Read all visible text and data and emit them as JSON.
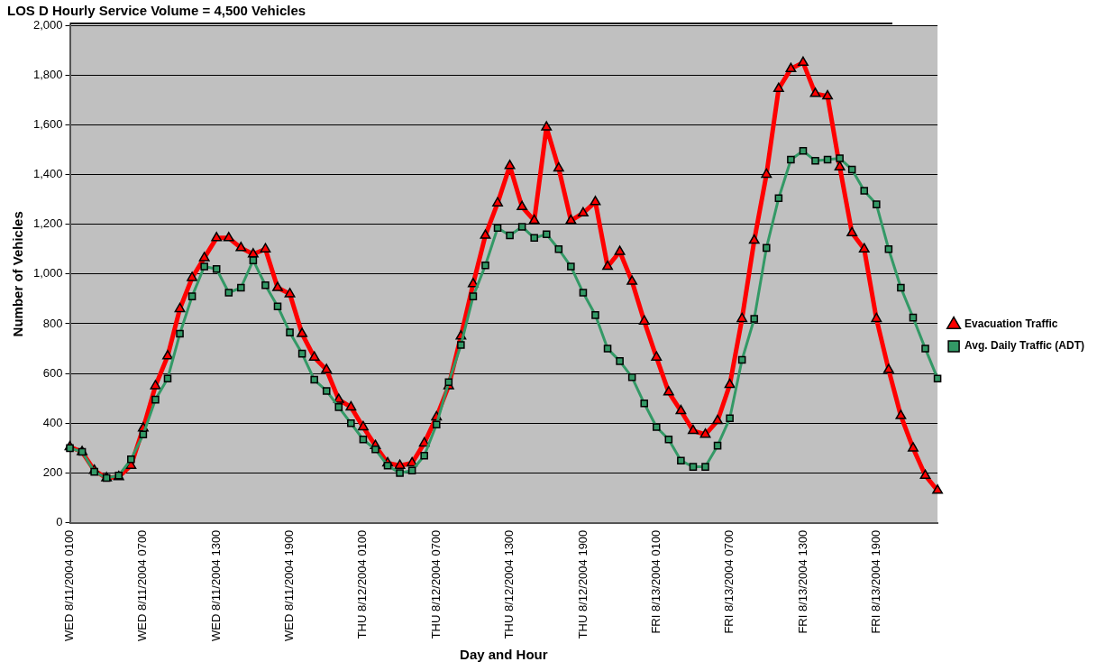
{
  "chart_data": {
    "type": "line",
    "title": "LOS D Hourly Service Volume = 4,500 Vehicles",
    "xlabel": "Day and Hour",
    "ylabel": "Number of Vehicles",
    "categories": [
      "WED 8/11/2004 0100",
      null,
      null,
      null,
      null,
      null,
      "WED 8/11/2004 0700",
      null,
      null,
      null,
      null,
      null,
      "WED 8/11/2004 1300",
      null,
      null,
      null,
      null,
      null,
      "WED 8/11/2004 1900",
      null,
      null,
      null,
      null,
      null,
      "THU 8/12/2004 0100",
      null,
      null,
      null,
      null,
      null,
      "THU 8/12/2004 0700",
      null,
      null,
      null,
      null,
      null,
      "THU 8/12/2004 1300",
      null,
      null,
      null,
      null,
      null,
      "THU 8/12/2004 1900",
      null,
      null,
      null,
      null,
      null,
      "FRI 8/13/2004 0100",
      null,
      null,
      null,
      null,
      null,
      "FRI 8/13/2004 0700",
      null,
      null,
      null,
      null,
      null,
      "FRI 8/13/2004 1300",
      null,
      null,
      null,
      null,
      null,
      "FRI 8/13/2004 1900",
      null,
      null,
      null,
      null,
      null
    ],
    "series": [
      {
        "name": "Evacuation Traffic",
        "color": "#ff0000",
        "marker": "triangle",
        "values": [
          305,
          285,
          210,
          180,
          185,
          230,
          380,
          550,
          670,
          860,
          985,
          1065,
          1145,
          1145,
          1105,
          1080,
          1100,
          945,
          920,
          760,
          665,
          615,
          495,
          465,
          385,
          310,
          240,
          230,
          240,
          320,
          425,
          550,
          750,
          960,
          1155,
          1285,
          1435,
          1270,
          1215,
          1590,
          1425,
          1215,
          1245,
          1290,
          1030,
          1090,
          970,
          810,
          665,
          525,
          450,
          370,
          355,
          410,
          555,
          820,
          1135,
          1400,
          1745,
          1825,
          1850,
          1725,
          1715,
          1430,
          1165,
          1100,
          820,
          615,
          430,
          300,
          190,
          130
        ]
      },
      {
        "name": "Avg. Daily Traffic (ADT)",
        "color": "#339966",
        "marker": "square",
        "values": [
          300,
          285,
          205,
          180,
          190,
          255,
          355,
          495,
          580,
          760,
          910,
          1030,
          1020,
          925,
          945,
          1055,
          955,
          870,
          765,
          680,
          575,
          530,
          465,
          400,
          335,
          295,
          230,
          200,
          210,
          270,
          395,
          565,
          715,
          910,
          1035,
          1185,
          1155,
          1190,
          1145,
          1160,
          1100,
          1030,
          925,
          835,
          700,
          650,
          585,
          480,
          385,
          335,
          250,
          225,
          225,
          310,
          420,
          655,
          820,
          1105,
          1305,
          1460,
          1495,
          1455,
          1460,
          1465,
          1420,
          1335,
          1280,
          1100,
          945,
          825,
          700,
          580
        ]
      }
    ],
    "ylim": [
      0,
      2000
    ],
    "yticks": [
      {
        "value": 0,
        "label": "0"
      },
      {
        "value": 200,
        "label": "200"
      },
      {
        "value": 400,
        "label": "400"
      },
      {
        "value": 600,
        "label": "600"
      },
      {
        "value": 800,
        "label": "800"
      },
      {
        "value": 1000,
        "label": "1,000"
      },
      {
        "value": 1200,
        "label": "1,200"
      },
      {
        "value": 1400,
        "label": "1,400"
      },
      {
        "value": 1600,
        "label": "1,600"
      },
      {
        "value": 1800,
        "label": "1,800"
      },
      {
        "value": 2000,
        "label": "2,000"
      }
    ],
    "grid": "y",
    "legend": "right",
    "line_style": "solid"
  }
}
